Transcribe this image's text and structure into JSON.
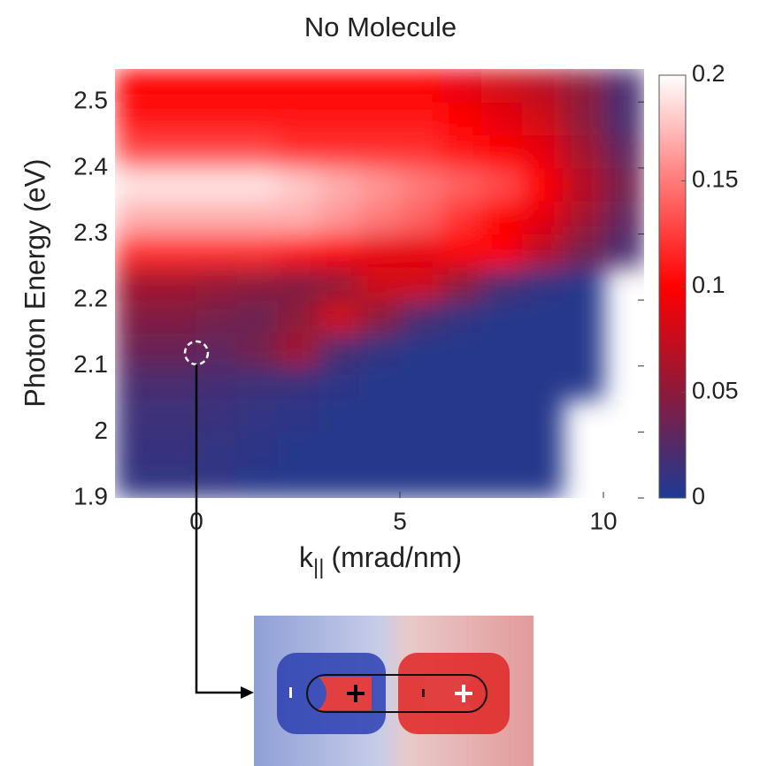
{
  "chart_data": {
    "type": "heatmap",
    "title": "No Molecule",
    "xlabel": {
      "main": "k",
      "sub": "||",
      "rest": "(mrad/nm)"
    },
    "ylabel": "Photon Energy (eV)",
    "x": [
      -1.5,
      -0.5,
      0.5,
      1.5,
      2.5,
      3.5,
      4.5,
      5.5,
      6.5,
      7.5,
      8.5,
      9.5,
      10.5
    ],
    "y": [
      1.925,
      1.975,
      2.025,
      2.075,
      2.125,
      2.175,
      2.225,
      2.275,
      2.325,
      2.375,
      2.425,
      2.475,
      2.525
    ],
    "z": [
      [
        0.01,
        0.01,
        0.01,
        0.005,
        0.005,
        0.005,
        0.005,
        0.005,
        0.005,
        0.005,
        0.005,
        null,
        null
      ],
      [
        0.012,
        0.012,
        0.01,
        0.008,
        0.005,
        0.005,
        0.005,
        0.005,
        0.005,
        0.005,
        0.005,
        null,
        null
      ],
      [
        0.015,
        0.015,
        0.013,
        0.01,
        0.008,
        0.005,
        0.005,
        0.005,
        0.005,
        0.005,
        0.005,
        null,
        null
      ],
      [
        0.02,
        0.02,
        0.018,
        0.015,
        0.012,
        0.008,
        0.005,
        0.005,
        0.005,
        0.005,
        0.005,
        0.005,
        null
      ],
      [
        0.035,
        0.035,
        0.03,
        0.04,
        0.06,
        0.02,
        0.01,
        0.005,
        0.005,
        0.005,
        0.005,
        0.005,
        null
      ],
      [
        0.045,
        0.045,
        0.04,
        0.035,
        0.05,
        0.08,
        0.05,
        0.02,
        0.01,
        0.005,
        0.005,
        0.005,
        null
      ],
      [
        0.06,
        0.06,
        0.055,
        0.05,
        0.045,
        0.05,
        0.08,
        0.08,
        0.05,
        0.02,
        0.01,
        0.005,
        null
      ],
      [
        0.12,
        0.12,
        0.12,
        0.12,
        0.11,
        0.1,
        0.09,
        0.09,
        0.1,
        0.1,
        0.07,
        0.04,
        0.02
      ],
      [
        0.17,
        0.17,
        0.17,
        0.17,
        0.17,
        0.16,
        0.15,
        0.14,
        0.12,
        0.1,
        0.09,
        0.06,
        0.03
      ],
      [
        0.19,
        0.19,
        0.19,
        0.19,
        0.18,
        0.17,
        0.16,
        0.15,
        0.14,
        0.13,
        0.1,
        0.07,
        0.04
      ],
      [
        0.13,
        0.13,
        0.13,
        0.13,
        0.12,
        0.12,
        0.12,
        0.12,
        0.11,
        0.1,
        0.09,
        0.06,
        0.03
      ],
      [
        0.11,
        0.11,
        0.11,
        0.11,
        0.11,
        0.11,
        0.11,
        0.11,
        0.1,
        0.09,
        0.08,
        0.05,
        0.02
      ],
      [
        0.1,
        0.1,
        0.1,
        0.1,
        0.1,
        0.1,
        0.1,
        0.1,
        0.09,
        0.08,
        0.07,
        0.05,
        0.02
      ]
    ],
    "xlim": [
      -2,
      11
    ],
    "xticks": [
      0,
      5,
      10
    ],
    "ylim": [
      1.9,
      2.55
    ],
    "yticks": [
      1.9,
      2,
      2.1,
      2.2,
      2.3,
      2.4,
      2.5
    ],
    "clim": [
      0,
      0.2
    ],
    "cticks": [
      0,
      0.05,
      0.1,
      0.15,
      0.2
    ],
    "colormap": [
      "#1d3a94",
      "#8c1a3a",
      "#ff0000",
      "#ff7a7a",
      "#ffffff"
    ],
    "grid": false
  }
}
